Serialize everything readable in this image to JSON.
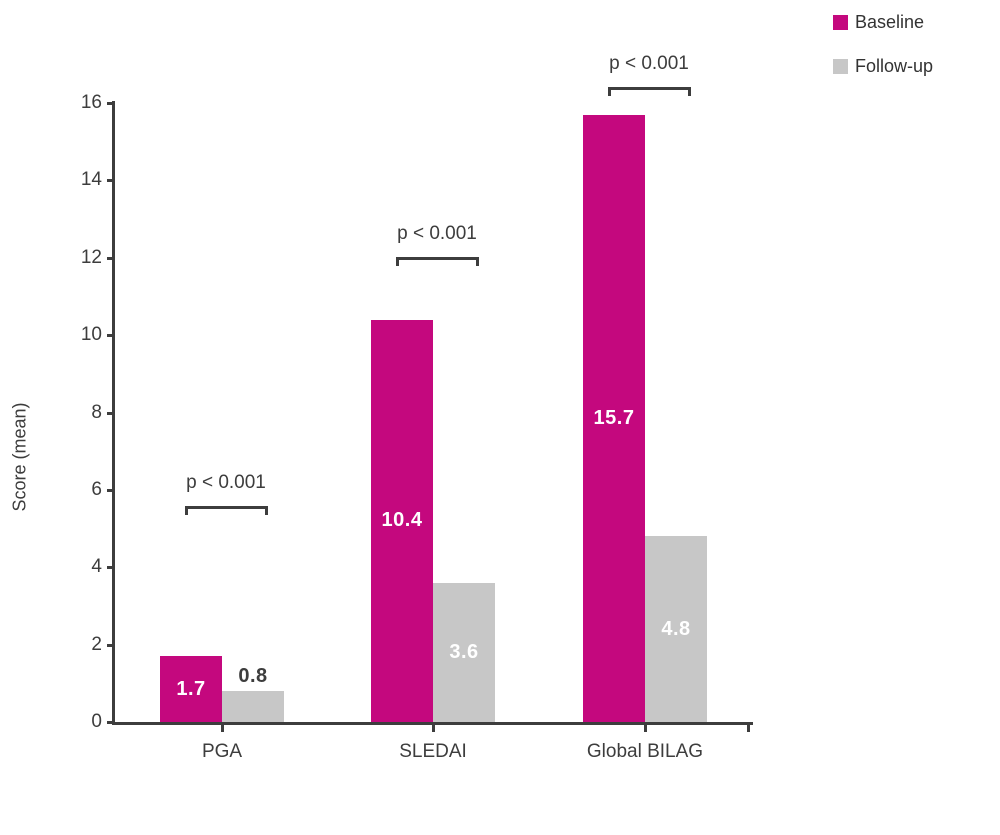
{
  "chart_data": {
    "type": "bar",
    "title": "",
    "ylabel": "Score (mean)",
    "xlabel": "",
    "categories": [
      "PGA",
      "SLEDAI",
      "Global BILAG"
    ],
    "series": [
      {
        "name": "Baseline",
        "color": "#c4087e",
        "values": [
          1.7,
          10.4,
          15.7
        ]
      },
      {
        "name": "Follow-up",
        "color": "#c7c7c7",
        "values": [
          0.8,
          3.6,
          4.8
        ]
      }
    ],
    "value_labels": [
      [
        "1.7",
        "0.8"
      ],
      [
        "10.4",
        "3.6"
      ],
      [
        "15.7",
        "4.8"
      ]
    ],
    "label_inside": [
      [
        true,
        false
      ],
      [
        true,
        true
      ],
      [
        true,
        true
      ]
    ],
    "annotations": [
      {
        "category": "PGA",
        "text": "p < 0.001"
      },
      {
        "category": "SLEDAI",
        "text": "p < 0.001"
      },
      {
        "category": "Global BILAG",
        "text": "p < 0.001"
      }
    ],
    "yticks": [
      0,
      2,
      4,
      6,
      8,
      10,
      12,
      14,
      16
    ],
    "ylim": [
      0,
      16
    ],
    "grid": false,
    "legend_position": "top-right"
  },
  "legend": {
    "items": [
      {
        "label": "Baseline",
        "color": "#c4087e"
      },
      {
        "label": "Follow-up",
        "color": "#c7c7c7"
      }
    ]
  },
  "colors": {
    "baseline": "#c4087e",
    "followup": "#c7c7c7",
    "axis": "#3d3d3d",
    "text": "#3d3d3d",
    "value_label_light": "#ffffff",
    "background": "#ffffff"
  }
}
